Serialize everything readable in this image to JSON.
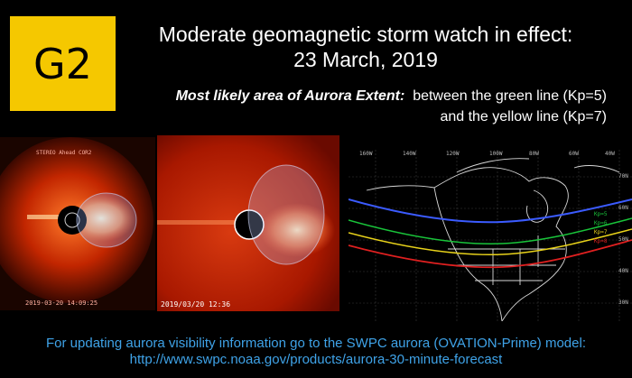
{
  "badge": {
    "label": "G2",
    "color": "#f5c800"
  },
  "headline": {
    "line1": "Moderate geomagnetic storm watch in effect:",
    "line2": "23 March, 2019"
  },
  "extent": {
    "lead": "Most likely area of Aurora Extent:",
    "line1_rest": "between the green line (Kp=5)",
    "line2": "and the yellow line (Kp=7)"
  },
  "coronagraph_left": {
    "title": "STEREO Ahead COR2",
    "timestamp": "2019-03-20 14:09:25"
  },
  "coronagraph_right": {
    "timestamp": "2019/03/20 12:36"
  },
  "aurora_map": {
    "longitude_labels": [
      "160W",
      "140W",
      "120W",
      "100W",
      "80W",
      "60W",
      "40W"
    ],
    "latitude_labels": [
      "70N",
      "60N",
      "50N",
      "40N",
      "30N"
    ],
    "kp_labels": [
      "Kp=5",
      "Kp=6",
      "Kp=7",
      "Kp=8"
    ],
    "line_colors": {
      "blue": "#3b5bff",
      "green": "#19c43a",
      "yellow": "#e8d21a",
      "red": "#e02020"
    }
  },
  "footer": {
    "line1": "For updating aurora visibility information go to the SWPC aurora (OVATION-Prime) model:",
    "line2": "http://www.swpc.noaa.gov/products/aurora-30-minute-forecast"
  }
}
